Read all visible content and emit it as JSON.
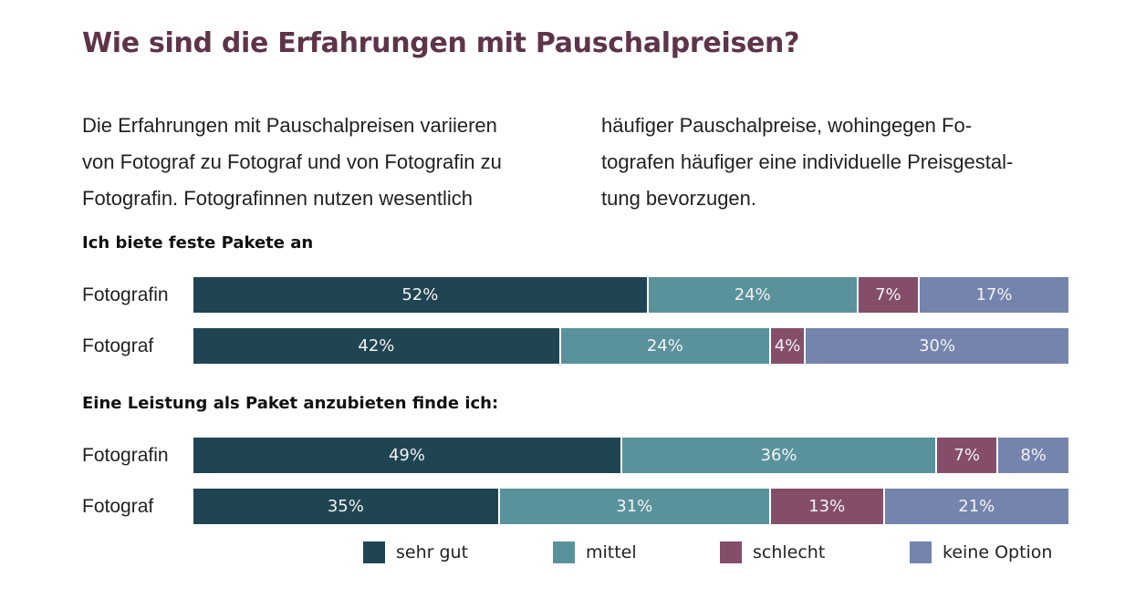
{
  "title": "Wie sind die Erfahrungen mit Pauschalpreisen?",
  "intro": {
    "left_lines": [
      "Die Erfahrungen mit Pauschalpreisen variieren",
      "von Fotograf zu Fotograf und von Fotografin zu",
      "Fotografin. Fotografinnen nutzen wesentlich"
    ],
    "right_lines": [
      "häufiger Pauschalpreise, wohingegen Fo-",
      "tografen häufiger eine individuelle Preisgestal-",
      "tung bevorzugen."
    ]
  },
  "colors": {
    "title": "#5e3449",
    "sehr_gut": "#204552",
    "mittel": "#5a929c",
    "schlecht": "#844e6b",
    "keine_option": "#7484ac"
  },
  "chart_data": [
    {
      "type": "bar",
      "orientation": "horizontal",
      "stacked": true,
      "title": "Ich biete feste Pakete an",
      "categories": [
        "Fotografin",
        "Fotograf"
      ],
      "series": [
        {
          "name": "sehr gut",
          "values": [
            52,
            42
          ]
        },
        {
          "name": "mittel",
          "values": [
            24,
            24
          ]
        },
        {
          "name": "schlecht",
          "values": [
            7,
            4
          ]
        },
        {
          "name": "keine Option",
          "values": [
            17,
            30
          ]
        }
      ],
      "unit": "%",
      "xlabel": "",
      "ylabel": "",
      "legend": "bottom"
    },
    {
      "type": "bar",
      "orientation": "horizontal",
      "stacked": true,
      "title": "Eine Leistung als Paket anzubieten finde ich:",
      "categories": [
        "Fotografin",
        "Fotograf"
      ],
      "series": [
        {
          "name": "sehr gut",
          "values": [
            49,
            35
          ]
        },
        {
          "name": "mittel",
          "values": [
            36,
            31
          ]
        },
        {
          "name": "schlecht",
          "values": [
            7,
            13
          ]
        },
        {
          "name": "keine Option",
          "values": [
            8,
            21
          ]
        }
      ],
      "unit": "%",
      "xlabel": "",
      "ylabel": "",
      "legend": "bottom"
    }
  ],
  "legend": [
    {
      "label": "sehr gut",
      "color": "#204552"
    },
    {
      "label": "mittel",
      "color": "#5a929c"
    },
    {
      "label": "schlecht",
      "color": "#844e6b"
    },
    {
      "label": "keine Option",
      "color": "#7484ac"
    }
  ]
}
